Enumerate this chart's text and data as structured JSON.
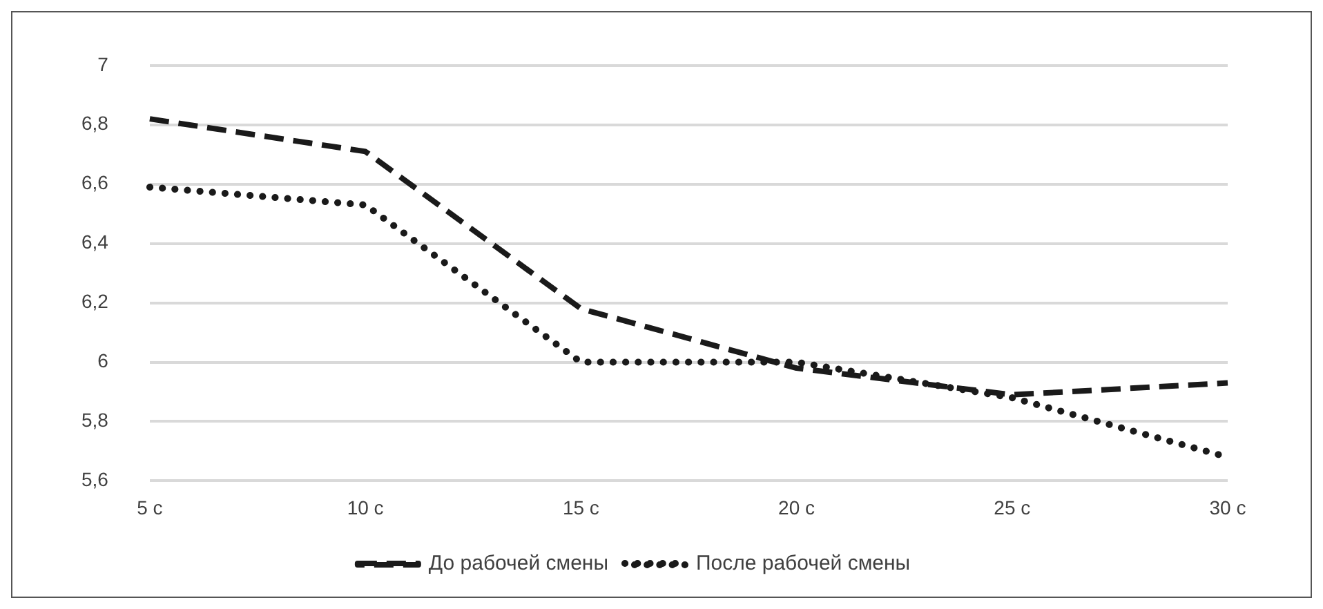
{
  "chart_data": {
    "type": "line",
    "categories": [
      "5 с",
      "10 с",
      "15 с",
      "20 с",
      "25 с",
      "30 с"
    ],
    "series": [
      {
        "name": "До рабочей смены",
        "color": "#1a1a1a",
        "line_style": "dashed",
        "values": [
          6.82,
          6.71,
          6.18,
          5.98,
          5.89,
          5.93
        ]
      },
      {
        "name": "После рабочей смены",
        "color": "#1a1a1a",
        "line_style": "dotted",
        "values": [
          6.59,
          6.53,
          6.0,
          6.0,
          5.88,
          5.68
        ]
      }
    ],
    "ylim": [
      5.6,
      7
    ],
    "yticks": [
      {
        "value": 5.6,
        "label": "5,6"
      },
      {
        "value": 5.8,
        "label": "5,8"
      },
      {
        "value": 6,
        "label": "6"
      },
      {
        "value": 6.2,
        "label": "6,2"
      },
      {
        "value": 6.4,
        "label": "6,4"
      },
      {
        "value": 6.6,
        "label": "6,6"
      },
      {
        "value": 6.8,
        "label": "6,8"
      },
      {
        "value": 7,
        "label": "7"
      }
    ],
    "grid": "y",
    "legend": "bottom",
    "marker": "none"
  }
}
